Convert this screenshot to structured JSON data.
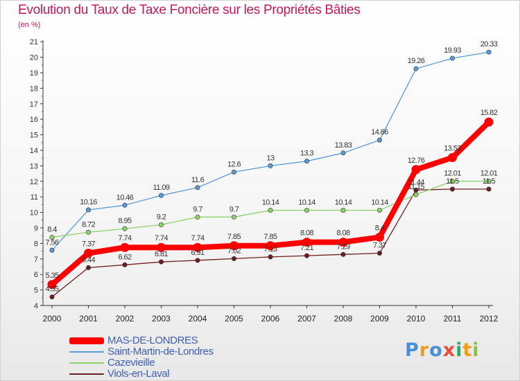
{
  "header": {
    "title": "Evolution du Taux de Taxe Foncière sur les Propriétés Bâties",
    "unit": "(en %)"
  },
  "logo": {
    "text": "Proxiti",
    "letters": [
      {
        "ch": "P",
        "color": "#4a90d9"
      },
      {
        "ch": "r",
        "color": "#f39c12"
      },
      {
        "ch": "o",
        "color": "#4a90d9"
      },
      {
        "ch": "x",
        "color": "#e74c3c"
      },
      {
        "ch": "i",
        "color": "#27ae60"
      },
      {
        "ch": "t",
        "color": "#f39c12"
      },
      {
        "ch": "i",
        "color": "#8bc34a"
      }
    ]
  },
  "chart_data": {
    "type": "line",
    "title": "Evolution du Taux de Taxe Foncière sur les Propriétés Bâties",
    "ylabel": "(en %)",
    "xlabel": "",
    "x": [
      "2000",
      "2001",
      "2002",
      "2003",
      "2004",
      "2005",
      "2006",
      "2007",
      "2008",
      "2009",
      "2010",
      "2011",
      "2012"
    ],
    "ylim": [
      4,
      21
    ],
    "yticks": [
      4,
      5,
      6,
      7,
      8,
      9,
      10,
      11,
      12,
      13,
      14,
      15,
      16,
      17,
      18,
      19,
      20,
      21
    ],
    "grid": false,
    "legend_position": "bottom-left",
    "series": [
      {
        "name": "MAS-DE-LONDRES",
        "color": "#ff0000",
        "values": [
          5.35,
          7.37,
          7.74,
          7.74,
          7.74,
          7.85,
          7.85,
          8.08,
          8.08,
          8.4,
          12.76,
          13.53,
          15.82
        ],
        "labels": [
          "5.35",
          "7.37",
          "7.74",
          "7.74",
          "7.74",
          "7.85",
          "7.85",
          "8.08",
          "8.08",
          "8.4",
          "12.76",
          "13.53",
          "15.82"
        ]
      },
      {
        "name": "Saint-Martin-de-Londres",
        "color": "#5b9bd5",
        "values": [
          7.56,
          10.16,
          10.46,
          11.09,
          11.6,
          12.6,
          13,
          13.3,
          13.83,
          14.66,
          19.26,
          19.93,
          20.33
        ],
        "labels": [
          "7.56",
          "10.16",
          "10.46",
          "11.09",
          "11.6",
          "12.6",
          "13",
          "13.3",
          "13.83",
          "14.66",
          "19.26",
          "19.93",
          "20.33"
        ]
      },
      {
        "name": "Cazevieille",
        "color": "#8ed36a",
        "values": [
          8.4,
          8.72,
          8.95,
          9.2,
          9.7,
          9.7,
          10.14,
          10.14,
          10.14,
          10.14,
          11.15,
          12.01,
          12.01
        ],
        "labels": [
          "8.4",
          "8.72",
          "8.95",
          "9.2",
          "9.7",
          "9.7",
          "10.14",
          "10.14",
          "10.14",
          "10.14",
          "11.15",
          "12.01",
          "12.01"
        ]
      },
      {
        "name": "Viols-en-Laval",
        "color": "#6b1e1e",
        "values": [
          4.55,
          6.44,
          6.62,
          6.81,
          6.91,
          7.02,
          7.13,
          7.21,
          7.29,
          7.37,
          11.44,
          11.5,
          11.5
        ],
        "labels": [
          "4.55",
          "6.44",
          "6.62",
          "6.81",
          "6.91",
          "7.02",
          "7.13",
          "7.21",
          "7.29",
          "7.37",
          "11.44",
          "11.5",
          "11.5"
        ]
      }
    ]
  }
}
